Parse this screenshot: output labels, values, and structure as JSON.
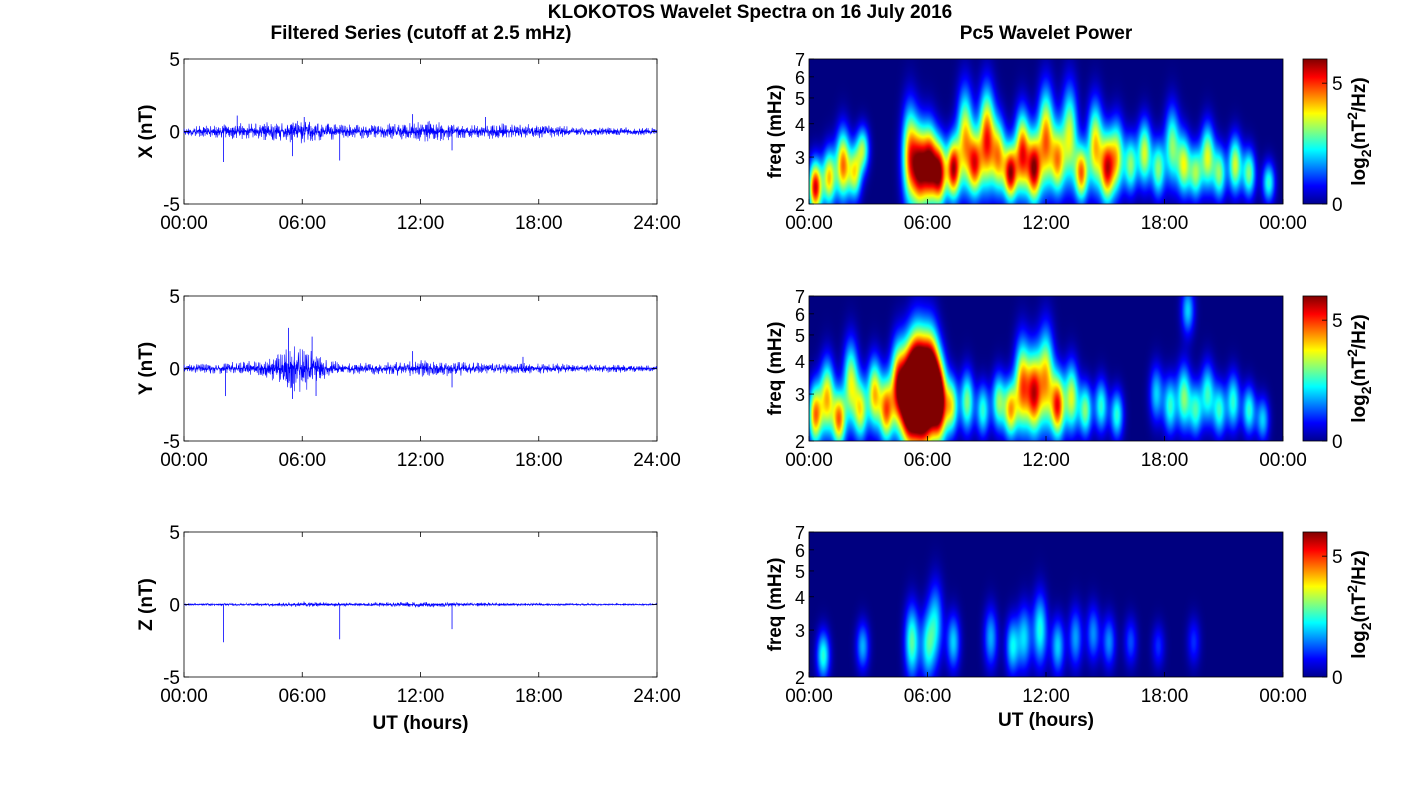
{
  "figure": {
    "title": "KLOKOTOS Wavelet Spectra on 16 July 2016",
    "left_column_title": "Filtered Series (cutoff at 2.5 mHz)",
    "right_column_title": "Pc5 Wavelet Power",
    "colors": {
      "trace": "#0000ff",
      "axes": "#000000",
      "background": "#ffffff",
      "spectrum_floor": "#00008f"
    },
    "colormap": "jet"
  },
  "chart_data": [
    {
      "type": "line",
      "id": "x-series",
      "ylabel": "X (nT)",
      "xlabel": "",
      "xlim": [
        0,
        24
      ],
      "ylim": [
        -5,
        5
      ],
      "yticks": [
        "-5",
        "0",
        "5"
      ],
      "xticks": [
        "00:00",
        "06:00",
        "12:00",
        "18:00",
        "24:00"
      ],
      "noise_envelope": {
        "t": [
          0,
          2,
          3,
          5,
          6,
          7,
          8,
          10,
          11.5,
          12.5,
          14,
          15,
          16,
          18,
          20,
          22,
          24
        ],
        "amp": [
          0.35,
          0.5,
          0.6,
          0.7,
          0.9,
          0.8,
          0.5,
          0.5,
          0.7,
          0.8,
          0.55,
          0.5,
          0.6,
          0.5,
          0.35,
          0.3,
          0.25
        ]
      },
      "spikes": [
        [
          2.0,
          -2.1
        ],
        [
          2.7,
          1.1
        ],
        [
          5.5,
          -1.7
        ],
        [
          6.1,
          1.0
        ],
        [
          7.9,
          -2.0
        ],
        [
          11.6,
          1.2
        ],
        [
          13.6,
          -1.3
        ],
        [
          15.3,
          1.0
        ]
      ]
    },
    {
      "type": "line",
      "id": "y-series",
      "ylabel": "Y (nT)",
      "xlabel": "",
      "xlim": [
        0,
        24
      ],
      "ylim": [
        -5,
        5
      ],
      "yticks": [
        "-5",
        "0",
        "5"
      ],
      "xticks": [
        "00:00",
        "06:00",
        "12:00",
        "18:00",
        "24:00"
      ],
      "noise_envelope": {
        "t": [
          0,
          2,
          4,
          5,
          5.5,
          6,
          6.5,
          7,
          8,
          10,
          12,
          14,
          16,
          18,
          20,
          22,
          24
        ],
        "amp": [
          0.3,
          0.4,
          0.6,
          1.4,
          2.0,
          1.6,
          1.5,
          0.9,
          0.4,
          0.45,
          0.6,
          0.5,
          0.4,
          0.4,
          0.3,
          0.3,
          0.2
        ]
      },
      "spikes": [
        [
          2.1,
          -1.9
        ],
        [
          5.3,
          2.8
        ],
        [
          5.5,
          -2.1
        ],
        [
          6.5,
          2.2
        ],
        [
          6.7,
          -1.9
        ],
        [
          11.6,
          1.2
        ],
        [
          13.6,
          -1.3
        ],
        [
          17.2,
          0.8
        ]
      ]
    },
    {
      "type": "line",
      "id": "z-series",
      "ylabel": "Z (nT)",
      "xlabel": "UT (hours)",
      "xlim": [
        0,
        24
      ],
      "ylim": [
        -5,
        5
      ],
      "yticks": [
        "-5",
        "0",
        "5"
      ],
      "xticks": [
        "00:00",
        "06:00",
        "12:00",
        "18:00",
        "24:00"
      ],
      "noise_envelope": {
        "t": [
          0,
          4,
          6,
          8,
          10,
          12,
          14,
          16,
          18,
          20,
          24
        ],
        "amp": [
          0.08,
          0.1,
          0.18,
          0.12,
          0.15,
          0.2,
          0.15,
          0.12,
          0.1,
          0.08,
          0.06
        ]
      },
      "spikes": [
        [
          2.0,
          -2.6
        ],
        [
          7.9,
          -2.4
        ],
        [
          13.6,
          -1.7
        ]
      ]
    },
    {
      "type": "heatmap",
      "id": "x-spectrum",
      "ylabel": "freq (mHz)",
      "xlabel": "",
      "colorbar_label": "log2(nT^2/Hz)",
      "colorbar_ticks": [
        "0",
        "5"
      ],
      "clim": [
        0,
        6
      ],
      "xlim": [
        0,
        24
      ],
      "ylim": [
        2,
        7
      ],
      "yscale": "log",
      "yticks": [
        "2",
        "3",
        "4",
        "5",
        "6",
        "7"
      ],
      "xticks": [
        "00:00",
        "06:00",
        "12:00",
        "18:00",
        "00:00"
      ],
      "blobs": [
        [
          0.3,
          2.3,
          5.5,
          0.9
        ],
        [
          1.0,
          2.5,
          4.0,
          1.0
        ],
        [
          1.7,
          2.8,
          4.5,
          1.3
        ],
        [
          2.3,
          2.6,
          3.5,
          0.9
        ],
        [
          2.7,
          3.2,
          3.0,
          0.7
        ],
        [
          5.1,
          3.0,
          4.5,
          2.0
        ],
        [
          5.6,
          2.7,
          5.0,
          1.6
        ],
        [
          6.1,
          2.8,
          5.5,
          1.5
        ],
        [
          6.6,
          2.6,
          5.5,
          1.2
        ],
        [
          7.3,
          2.7,
          5.5,
          1.1
        ],
        [
          7.9,
          3.5,
          4.0,
          2.0
        ],
        [
          8.4,
          2.8,
          4.5,
          1.2
        ],
        [
          9.0,
          3.5,
          5.0,
          2.0
        ],
        [
          9.6,
          3.0,
          4.0,
          1.4
        ],
        [
          10.2,
          2.6,
          5.5,
          1.0
        ],
        [
          10.8,
          3.1,
          5.0,
          1.6
        ],
        [
          11.4,
          2.7,
          5.5,
          1.3
        ],
        [
          12.0,
          3.5,
          4.5,
          2.0
        ],
        [
          12.6,
          2.9,
          4.0,
          1.3
        ],
        [
          13.2,
          3.6,
          3.5,
          2.0
        ],
        [
          13.8,
          2.6,
          4.5,
          1.0
        ],
        [
          14.5,
          3.3,
          4.0,
          1.7
        ],
        [
          15.1,
          2.7,
          5.0,
          1.3
        ],
        [
          15.6,
          3.0,
          3.5,
          1.4
        ],
        [
          16.3,
          2.8,
          3.0,
          1.0
        ],
        [
          17.0,
          3.1,
          3.5,
          1.2
        ],
        [
          17.7,
          2.7,
          3.0,
          1.0
        ],
        [
          18.4,
          3.3,
          3.0,
          1.5
        ],
        [
          19.0,
          2.8,
          3.5,
          1.1
        ],
        [
          19.6,
          2.6,
          3.0,
          0.9
        ],
        [
          20.2,
          3.0,
          3.5,
          1.2
        ],
        [
          20.8,
          2.6,
          3.0,
          0.9
        ],
        [
          21.6,
          2.8,
          3.5,
          1.0
        ],
        [
          22.3,
          2.6,
          3.0,
          0.8
        ],
        [
          23.3,
          2.4,
          2.5,
          0.6
        ]
      ]
    },
    {
      "type": "heatmap",
      "id": "y-spectrum",
      "ylabel": "freq (mHz)",
      "xlabel": "",
      "colorbar_label": "log2(nT^2/Hz)",
      "colorbar_ticks": [
        "0",
        "5"
      ],
      "clim": [
        0,
        6
      ],
      "xlim": [
        0,
        24
      ],
      "ylim": [
        2,
        7
      ],
      "yscale": "log",
      "yticks": [
        "2",
        "3",
        "4",
        "5",
        "6",
        "7"
      ],
      "xticks": [
        "00:00",
        "06:00",
        "12:00",
        "18:00",
        "00:00"
      ],
      "blobs": [
        [
          0.3,
          2.5,
          4.5,
          1.1
        ],
        [
          0.9,
          2.9,
          4.0,
          1.4
        ],
        [
          1.5,
          2.4,
          4.5,
          1.0
        ],
        [
          2.1,
          3.3,
          3.5,
          1.6
        ],
        [
          2.6,
          2.6,
          3.5,
          1.1
        ],
        [
          3.3,
          3.0,
          4.0,
          1.3
        ],
        [
          3.9,
          2.6,
          4.5,
          1.2
        ],
        [
          4.5,
          3.2,
          5.0,
          1.7
        ],
        [
          5.0,
          2.9,
          6.5,
          2.0
        ],
        [
          5.4,
          3.2,
          7.0,
          2.2
        ],
        [
          5.8,
          3.0,
          7.0,
          2.2
        ],
        [
          6.2,
          3.3,
          6.5,
          2.0
        ],
        [
          6.6,
          2.8,
          6.0,
          1.6
        ],
        [
          7.2,
          2.7,
          3.5,
          1.0
        ],
        [
          8.0,
          2.8,
          3.0,
          1.1
        ],
        [
          8.8,
          2.6,
          2.5,
          0.9
        ],
        [
          9.6,
          2.8,
          3.0,
          1.0
        ],
        [
          10.2,
          2.6,
          4.0,
          1.0
        ],
        [
          10.8,
          3.2,
          4.5,
          1.8
        ],
        [
          11.4,
          3.0,
          5.0,
          1.6
        ],
        [
          12.0,
          3.4,
          4.0,
          2.0
        ],
        [
          12.6,
          2.7,
          5.0,
          1.2
        ],
        [
          13.3,
          2.9,
          3.5,
          1.3
        ],
        [
          14.0,
          2.6,
          3.0,
          0.9
        ],
        [
          14.8,
          2.7,
          2.5,
          0.9
        ],
        [
          15.6,
          2.5,
          2.5,
          0.8
        ],
        [
          17.6,
          3.0,
          2.0,
          1.0
        ],
        [
          18.3,
          2.7,
          2.5,
          1.0
        ],
        [
          19.0,
          2.9,
          3.0,
          1.2
        ],
        [
          19.6,
          2.6,
          2.5,
          0.9
        ],
        [
          20.2,
          3.0,
          2.5,
          1.1
        ],
        [
          20.8,
          2.6,
          2.5,
          0.9
        ],
        [
          21.5,
          2.8,
          2.5,
          1.0
        ],
        [
          22.3,
          2.6,
          2.5,
          0.8
        ],
        [
          23.0,
          2.4,
          2.0,
          0.7
        ],
        [
          19.2,
          6.2,
          2.0,
          0.8
        ]
      ]
    },
    {
      "type": "heatmap",
      "id": "z-spectrum",
      "ylabel": "freq (mHz)",
      "xlabel": "UT (hours)",
      "colorbar_label": "log2(nT^2/Hz)",
      "colorbar_ticks": [
        "0",
        "5"
      ],
      "clim": [
        0,
        6
      ],
      "xlim": [
        0,
        24
      ],
      "ylim": [
        2,
        7
      ],
      "yscale": "log",
      "yticks": [
        "2",
        "3",
        "4",
        "5",
        "6",
        "7"
      ],
      "xticks": [
        "00:00",
        "06:00",
        "12:00",
        "18:00",
        "00:00"
      ],
      "blobs": [
        [
          0.7,
          2.4,
          2.5,
          0.8
        ],
        [
          2.7,
          2.6,
          1.8,
          0.8
        ],
        [
          5.2,
          2.7,
          2.8,
          1.4
        ],
        [
          6.0,
          2.6,
          2.2,
          1.3
        ],
        [
          6.4,
          3.2,
          2.0,
          1.6
        ],
        [
          7.3,
          2.7,
          2.0,
          1.0
        ],
        [
          9.2,
          2.8,
          1.8,
          1.1
        ],
        [
          10.3,
          2.6,
          2.2,
          1.0
        ],
        [
          10.9,
          2.8,
          2.0,
          1.2
        ],
        [
          11.7,
          3.0,
          2.4,
          1.4
        ],
        [
          12.6,
          2.6,
          2.0,
          1.0
        ],
        [
          13.5,
          2.8,
          1.7,
          1.1
        ],
        [
          14.4,
          2.9,
          1.6,
          1.0
        ],
        [
          15.2,
          2.7,
          1.6,
          0.9
        ],
        [
          16.3,
          2.7,
          1.2,
          0.8
        ],
        [
          17.7,
          2.6,
          1.0,
          0.7
        ],
        [
          19.5,
          2.7,
          1.0,
          0.8
        ]
      ]
    }
  ]
}
